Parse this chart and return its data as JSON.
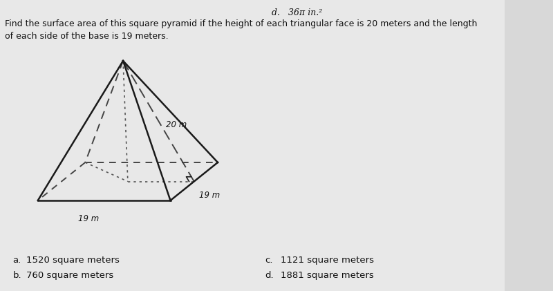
{
  "top_label": "d.   36π in.²",
  "question_line1": "Find the surface area of this square pyramid if the height of each triangular face is 20 meters and the length",
  "question_line2": "of each side of the base is 19 meters.",
  "label_20m": "20 m",
  "label_19m_right": "19 m",
  "label_19m_base": "19 m",
  "answers": [
    {
      "letter": "a.",
      "text": "1520 square meters"
    },
    {
      "letter": "b.",
      "text": "760 square meters"
    },
    {
      "letter": "c.",
      "text": "1121 square meters"
    },
    {
      "letter": "d.",
      "text": "1881 square meters"
    }
  ],
  "bg_color": "#d8d8d8",
  "text_color": "#111111",
  "pyramid_solid": "#1a1a1a",
  "pyramid_dashed": "#444444",
  "pyramid_dotted": "#555555"
}
